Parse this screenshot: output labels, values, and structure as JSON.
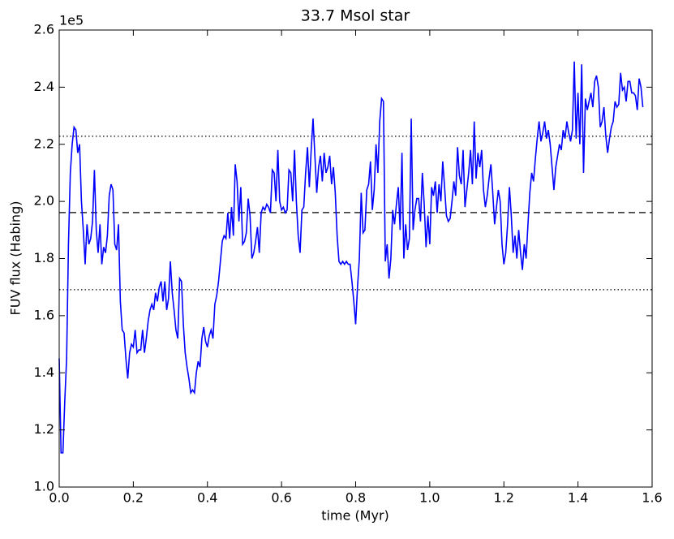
{
  "chart_data": {
    "type": "line",
    "title": "33.7 Msol star",
    "xlabel": "time (Myr)",
    "ylabel": "FUV flux (Habing)",
    "y_offset_label": "1e5",
    "color": "#0000ff",
    "xlim": [
      0,
      1.6
    ],
    "ylim": [
      1,
      2.6
    ],
    "xticks": [
      {
        "value": 0,
        "label": "0.0"
      },
      0.2,
      0.4,
      0.6,
      0.8,
      {
        "value": 1,
        "label": "1.0"
      },
      1.2,
      1.4,
      1.6
    ],
    "yticks": [
      {
        "value": 1,
        "label": "1.0"
      },
      1.2,
      1.4,
      1.6,
      1.8,
      {
        "value": 2,
        "label": "2.0"
      },
      2.2,
      2.4,
      2.6
    ],
    "reference_lines": [
      {
        "value": 2.228,
        "style": "dotted"
      },
      {
        "value": 1.961,
        "style": "dashed"
      },
      {
        "value": 1.691,
        "style": "dotted"
      }
    ],
    "x": [
      0,
      0.005,
      0.01,
      0.015,
      0.02,
      0.025,
      0.03,
      0.035,
      0.04,
      0.045,
      0.05,
      0.055,
      0.06,
      0.065,
      0.07,
      0.075,
      0.08,
      0.085,
      0.09,
      0.095,
      0.1,
      0.105,
      0.11,
      0.115,
      0.12,
      0.125,
      0.13,
      0.135,
      0.14,
      0.145,
      0.15,
      0.155,
      0.16,
      0.165,
      0.17,
      0.175,
      0.18,
      0.185,
      0.19,
      0.195,
      0.2,
      0.205,
      0.21,
      0.215,
      0.22,
      0.225,
      0.23,
      0.235,
      0.24,
      0.245,
      0.25,
      0.255,
      0.26,
      0.265,
      0.27,
      0.275,
      0.28,
      0.285,
      0.29,
      0.295,
      0.3,
      0.305,
      0.31,
      0.315,
      0.32,
      0.325,
      0.33,
      0.335,
      0.34,
      0.345,
      0.35,
      0.355,
      0.36,
      0.365,
      0.37,
      0.375,
      0.38,
      0.385,
      0.39,
      0.395,
      0.4,
      0.405,
      0.41,
      0.415,
      0.42,
      0.425,
      0.43,
      0.435,
      0.44,
      0.445,
      0.45,
      0.455,
      0.46,
      0.465,
      0.47,
      0.475,
      0.48,
      0.485,
      0.49,
      0.495,
      0.5,
      0.505,
      0.51,
      0.515,
      0.52,
      0.525,
      0.53,
      0.535,
      0.54,
      0.545,
      0.55,
      0.555,
      0.56,
      0.565,
      0.57,
      0.575,
      0.58,
      0.585,
      0.59,
      0.595,
      0.6,
      0.605,
      0.61,
      0.615,
      0.62,
      0.625,
      0.63,
      0.635,
      0.64,
      0.645,
      0.65,
      0.655,
      0.66,
      0.665,
      0.67,
      0.675,
      0.68,
      0.685,
      0.69,
      0.695,
      0.7,
      0.705,
      0.71,
      0.715,
      0.72,
      0.725,
      0.73,
      0.735,
      0.74,
      0.745,
      0.75,
      0.755,
      0.76,
      0.765,
      0.77,
      0.775,
      0.78,
      0.785,
      0.79,
      0.795,
      0.8,
      0.805,
      0.81,
      0.815,
      0.82,
      0.825,
      0.83,
      0.835,
      0.84,
      0.845,
      0.85,
      0.855,
      0.86,
      0.865,
      0.87,
      0.875,
      0.88,
      0.885,
      0.89,
      0.895,
      0.9,
      0.905,
      0.91,
      0.915,
      0.92,
      0.925,
      0.93,
      0.935,
      0.94,
      0.945,
      0.95,
      0.955,
      0.96,
      0.965,
      0.97,
      0.975,
      0.98,
      0.985,
      0.99,
      0.995,
      1,
      1.005,
      1.01,
      1.015,
      1.02,
      1.025,
      1.03,
      1.035,
      1.04,
      1.045,
      1.05,
      1.055,
      1.06,
      1.065,
      1.07,
      1.075,
      1.08,
      1.085,
      1.09,
      1.095,
      1.1,
      1.105,
      1.11,
      1.115,
      1.12,
      1.125,
      1.13,
      1.135,
      1.14,
      1.145,
      1.15,
      1.155,
      1.16,
      1.165,
      1.17,
      1.175,
      1.18,
      1.185,
      1.19,
      1.195,
      1.2,
      1.205,
      1.21,
      1.215,
      1.22,
      1.225,
      1.23,
      1.235,
      1.24,
      1.245,
      1.25,
      1.255,
      1.26,
      1.265,
      1.27,
      1.275,
      1.28,
      1.285,
      1.29,
      1.295,
      1.3,
      1.305,
      1.31,
      1.315,
      1.32,
      1.325,
      1.33,
      1.335,
      1.34,
      1.345,
      1.35,
      1.355,
      1.36,
      1.365,
      1.37,
      1.375,
      1.38,
      1.385,
      1.39,
      1.395,
      1.4,
      1.405,
      1.41,
      1.415,
      1.42,
      1.425,
      1.43,
      1.435,
      1.44,
      1.445,
      1.45,
      1.455,
      1.46,
      1.465,
      1.47,
      1.475,
      1.48,
      1.485,
      1.49,
      1.495,
      1.5,
      1.505,
      1.51,
      1.515,
      1.52,
      1.525,
      1.53,
      1.535,
      1.54,
      1.545,
      1.55,
      1.555,
      1.56,
      1.565,
      1.57,
      1.575
    ],
    "values": [
      1.45,
      1.12,
      1.12,
      1.3,
      1.45,
      1.85,
      2.1,
      2.2,
      2.26,
      2.25,
      2.17,
      2.2,
      2.0,
      1.9,
      1.78,
      1.92,
      1.85,
      1.87,
      1.93,
      2.11,
      1.9,
      1.82,
      1.92,
      1.78,
      1.84,
      1.82,
      1.88,
      2.02,
      2.06,
      2.04,
      1.85,
      1.83,
      1.92,
      1.65,
      1.55,
      1.54,
      1.45,
      1.38,
      1.47,
      1.5,
      1.49,
      1.55,
      1.47,
      1.48,
      1.48,
      1.55,
      1.47,
      1.52,
      1.58,
      1.62,
      1.64,
      1.62,
      1.68,
      1.65,
      1.7,
      1.72,
      1.65,
      1.72,
      1.62,
      1.66,
      1.79,
      1.68,
      1.62,
      1.55,
      1.52,
      1.73,
      1.72,
      1.57,
      1.47,
      1.42,
      1.38,
      1.33,
      1.34,
      1.33,
      1.4,
      1.44,
      1.42,
      1.52,
      1.56,
      1.51,
      1.49,
      1.53,
      1.55,
      1.52,
      1.64,
      1.67,
      1.72,
      1.79,
      1.86,
      1.88,
      1.87,
      1.96,
      1.87,
      1.98,
      1.88,
      2.13,
      2.07,
      1.93,
      2.05,
      1.85,
      1.86,
      1.89,
      2.01,
      1.95,
      1.8,
      1.82,
      1.86,
      1.91,
      1.82,
      1.96,
      1.98,
      1.97,
      1.99,
      1.98,
      1.96,
      2.11,
      2.1,
      2.0,
      2.18,
      2.0,
      1.97,
      1.98,
      1.96,
      1.97,
      2.11,
      2.1,
      2.0,
      2.18,
      2.0,
      1.88,
      1.82,
      1.97,
      1.98,
      2.1,
      2.19,
      2.05,
      2.18,
      2.29,
      2.16,
      2.03,
      2.12,
      2.16,
      2.07,
      2.17,
      2.1,
      2.12,
      2.16,
      2.06,
      2.12,
      2.03,
      1.88,
      1.79,
      1.78,
      1.79,
      1.78,
      1.79,
      1.78,
      1.78,
      1.72,
      1.65,
      1.57,
      1.7,
      1.8,
      2.03,
      1.89,
      1.9,
      2.04,
      2.06,
      2.14,
      1.97,
      2.04,
      2.2,
      2.1,
      2.28,
      2.36,
      2.35,
      1.79,
      1.85,
      1.73,
      1.8,
      1.97,
      1.92,
      1.99,
      2.05,
      1.9,
      2.17,
      1.8,
      1.92,
      1.83,
      1.87,
      2.29,
      1.9,
      1.97,
      2.01,
      2.01,
      1.93,
      2.1,
      1.99,
      1.84,
      1.95,
      1.85,
      2.05,
      2.02,
      2.07,
      1.96,
      2.06,
      2.0,
      2.14,
      2.05,
      1.95,
      1.93,
      1.94,
      2.0,
      2.07,
      2.02,
      2.19,
      2.09,
      2.06,
      2.18,
      1.98,
      2.04,
      2.1,
      2.18,
      2.06,
      2.28,
      2.08,
      2.17,
      2.12,
      2.18,
      2.04,
      1.98,
      2.02,
      2.08,
      2.13,
      2.03,
      1.92,
      1.98,
      2.04,
      2.0,
      1.85,
      1.78,
      1.82,
      1.92,
      2.05,
      1.95,
      1.82,
      1.88,
      1.8,
      1.9,
      1.82,
      1.76,
      1.85,
      1.8,
      1.92,
      2.03,
      2.1,
      2.07,
      2.15,
      2.22,
      2.28,
      2.21,
      2.24,
      2.28,
      2.22,
      2.25,
      2.2,
      2.12,
      2.04,
      2.12,
      2.16,
      2.2,
      2.18,
      2.25,
      2.22,
      2.28,
      2.24,
      2.21,
      2.25,
      2.49,
      2.22,
      2.38,
      2.2,
      2.48,
      2.1,
      2.36,
      2.32,
      2.35,
      2.38,
      2.33,
      2.42,
      2.44,
      2.4,
      2.26,
      2.28,
      2.33,
      2.23,
      2.17,
      2.22,
      2.26,
      2.28,
      2.35,
      2.33,
      2.34,
      2.45,
      2.39,
      2.4,
      2.35,
      2.42,
      2.42,
      2.38,
      2.38,
      2.37,
      2.32,
      2.43,
      2.4,
      2.33
    ]
  }
}
